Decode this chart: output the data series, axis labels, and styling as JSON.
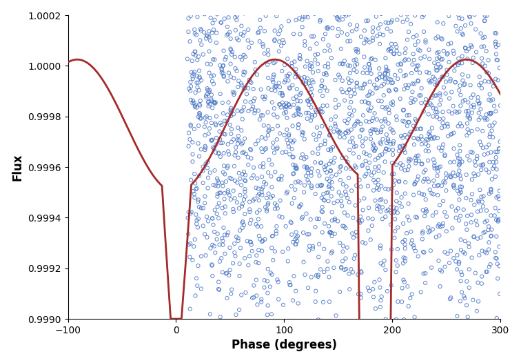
{
  "title": "",
  "xlabel": "Phase (degrees)",
  "ylabel": "Flux",
  "xlim": [
    -100,
    300
  ],
  "ylim": [
    0.999,
    1.0002
  ],
  "yticks": [
    0.999,
    0.9992,
    0.9994,
    0.9996,
    0.9998,
    1.0,
    1.0002
  ],
  "xticks": [
    -100,
    0,
    100,
    200,
    300
  ],
  "scatter_color": "#4472C4",
  "line_color": "#A52A2A",
  "scatter_n": 2500,
  "scatter_seed": 42,
  "background_color": "#ffffff",
  "xlabel_fontsize": 12,
  "ylabel_fontsize": 12,
  "tick_fontsize": 10,
  "line_width": 2.0
}
